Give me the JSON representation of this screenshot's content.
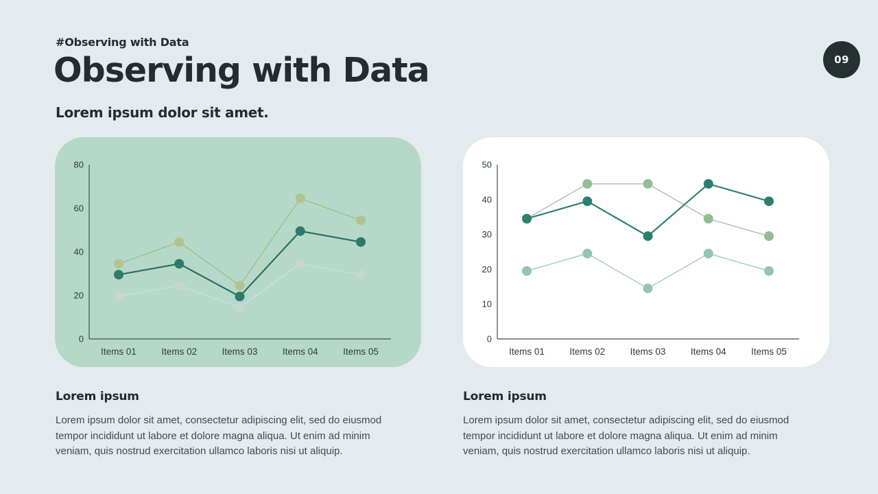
{
  "page": {
    "kicker": "#Observing with Data",
    "title": "Observing with Data",
    "subtitle": "Lorem ipsum dolor sit amet.",
    "badge": "09",
    "background": "#e4ebee",
    "title_color": "#262b32",
    "badge_background": "#253131"
  },
  "chart_data": [
    {
      "type": "line",
      "title": "",
      "categories": [
        "Items 01",
        "Items 02",
        "Items 03",
        "Items 04",
        "Items 05"
      ],
      "series": [
        {
          "name": "sage-series",
          "values": [
            34.5,
            44.5,
            24.5,
            64.5,
            54.5
          ],
          "dot_color": "#b2c48d",
          "line_color": "#a6bc86",
          "line_width": 1.4
        },
        {
          "name": "light-series",
          "values": [
            19.5,
            24.5,
            14.5,
            34.5,
            29.5
          ],
          "dot_color": "#c6d7cb",
          "line_color": "#cedfd5",
          "line_width": 1.4
        },
        {
          "name": "teal-series",
          "values": [
            29.5,
            34.5,
            19.5,
            49.5,
            44.5
          ],
          "dot_color": "#2d7a6a",
          "line_color": "#2c6f62",
          "line_width": 2.2
        }
      ],
      "xlabel": "",
      "ylabel": "",
      "ylim": [
        0,
        80
      ],
      "yticks": [
        0,
        20,
        40,
        60,
        80
      ],
      "grid": false,
      "legend": false,
      "card_background": "#b5d8c9",
      "axis_color": "#45504e",
      "label_color": "#323c3b"
    },
    {
      "type": "line",
      "title": "",
      "categories": [
        "Items 01",
        "Items 02",
        "Items 03",
        "Items 04",
        "Items 05"
      ],
      "series": [
        {
          "name": "sage-series",
          "values": [
            34.5,
            44.5,
            44.5,
            34.5,
            29.5
          ],
          "dot_color": "#93bd92",
          "line_color": "#b9b8b0",
          "line_width": 1.4
        },
        {
          "name": "light-series",
          "values": [
            19.5,
            24.5,
            14.5,
            24.5,
            19.5
          ],
          "dot_color": "#95c3b4",
          "line_color": "#a3ccbf",
          "line_width": 1.4
        },
        {
          "name": "teal-series",
          "values": [
            34.5,
            39.5,
            29.5,
            44.5,
            39.5
          ],
          "dot_color": "#2a8070",
          "line_color": "#2d8272",
          "line_width": 2.2
        }
      ],
      "xlabel": "",
      "ylabel": "",
      "ylim": [
        0,
        50
      ],
      "yticks": [
        0,
        10,
        20,
        30,
        40,
        50
      ],
      "grid": false,
      "legend": false,
      "card_background": "#fdfefd",
      "axis_color": "#45504e",
      "label_color": "#323c3b"
    }
  ],
  "notes": [
    {
      "heading": "Lorem ipsum",
      "body": "Lorem ipsum dolor sit amet, consectetur adipiscing elit, sed do eiusmod tempor incididunt ut labore et dolore magna aliqua. Ut enim ad minim veniam, quis nostrud exercitation ullamco laboris nisi ut aliquip."
    },
    {
      "heading": "Lorem ipsum",
      "body": "Lorem ipsum dolor sit amet, consectetur adipiscing elit, sed do eiusmod tempor incididunt ut labore et dolore magna aliqua. Ut enim ad minim veniam, quis nostrud exercitation ullamco laboris nisi ut aliquip."
    }
  ]
}
